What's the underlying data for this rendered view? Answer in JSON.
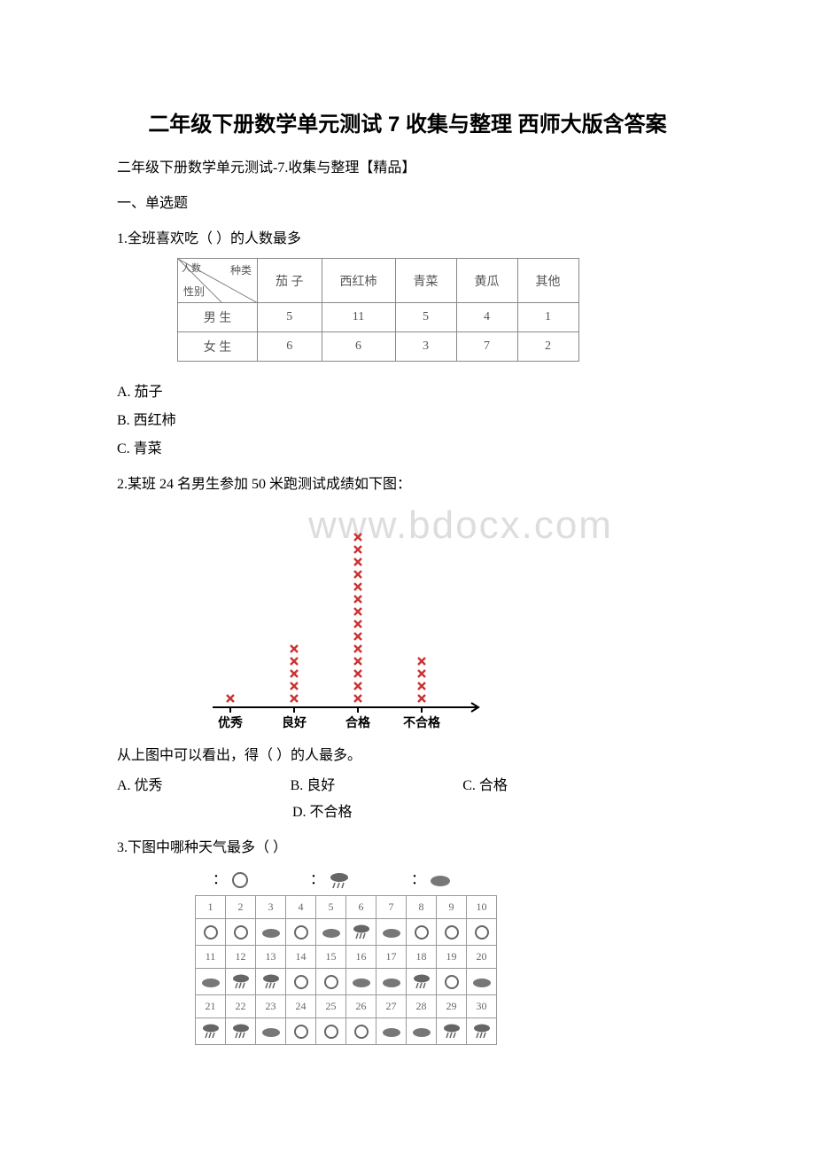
{
  "title": "二年级下册数学单元测试 7 收集与整理 西师大版含答案",
  "subtitle": "二年级下册数学单元测试-7.收集与整理【精品】",
  "section1": "一、单选题",
  "q1": {
    "text": "1.全班喜欢吃（   ）的人数最多",
    "table": {
      "diag_top": "种类",
      "diag_bot": "性别",
      "diag_mid": "人数",
      "cols": [
        "茄 子",
        "西红柿",
        "青菜",
        "黄瓜",
        "其他"
      ],
      "rows": [
        {
          "label": "男 生",
          "vals": [
            "5",
            "11",
            "5",
            "4",
            "1"
          ]
        },
        {
          "label": "女 生",
          "vals": [
            "6",
            "6",
            "3",
            "7",
            "2"
          ]
        }
      ]
    },
    "options": [
      {
        "key": "A.",
        "text": "茄子"
      },
      {
        "key": "B.",
        "text": "西红柿"
      },
      {
        "key": "C.",
        "text": "青菜"
      }
    ]
  },
  "q2": {
    "text": "2.某班 24 名男生参加 50 米跑测试成绩如下图：",
    "watermark": "www.bdocx.com",
    "chart": {
      "categories": [
        "优秀",
        "良好",
        "合格",
        "不合格"
      ],
      "counts": [
        1,
        5,
        14,
        4
      ],
      "mark_color": "#cc3333",
      "axis_color": "#000000",
      "label_fontsize": 14
    },
    "followup": "从上图中可以看出，得（   ）的人最多。",
    "opts": {
      "A": "A. 优秀",
      "B": "B. 良好",
      "C": "C. 合格",
      "D": "D. 不合格"
    }
  },
  "q3": {
    "text": "3.下图中哪种天气最多（   ）",
    "icons": {
      "sunny": "sunny",
      "rainy": "rainy",
      "cloudy": "cloudy"
    },
    "days": [
      "1",
      "2",
      "3",
      "4",
      "5",
      "6",
      "7",
      "8",
      "9",
      "10",
      "11",
      "12",
      "13",
      "14",
      "15",
      "16",
      "17",
      "18",
      "19",
      "20",
      "21",
      "22",
      "23",
      "24",
      "25",
      "26",
      "27",
      "28",
      "29",
      "30"
    ],
    "weather": [
      "sunny",
      "sunny",
      "cloudy",
      "sunny",
      "cloudy",
      "rainy",
      "cloudy",
      "sunny",
      "sunny",
      "sunny",
      "cloudy",
      "rainy",
      "rainy",
      "sunny",
      "sunny",
      "cloudy",
      "cloudy",
      "rainy",
      "sunny",
      "cloudy",
      "rainy",
      "rainy",
      "cloudy",
      "sunny",
      "sunny",
      "sunny",
      "cloudy",
      "cloudy",
      "rainy",
      "rainy"
    ],
    "colors": {
      "border": "#999999",
      "icon": "#666666"
    }
  }
}
